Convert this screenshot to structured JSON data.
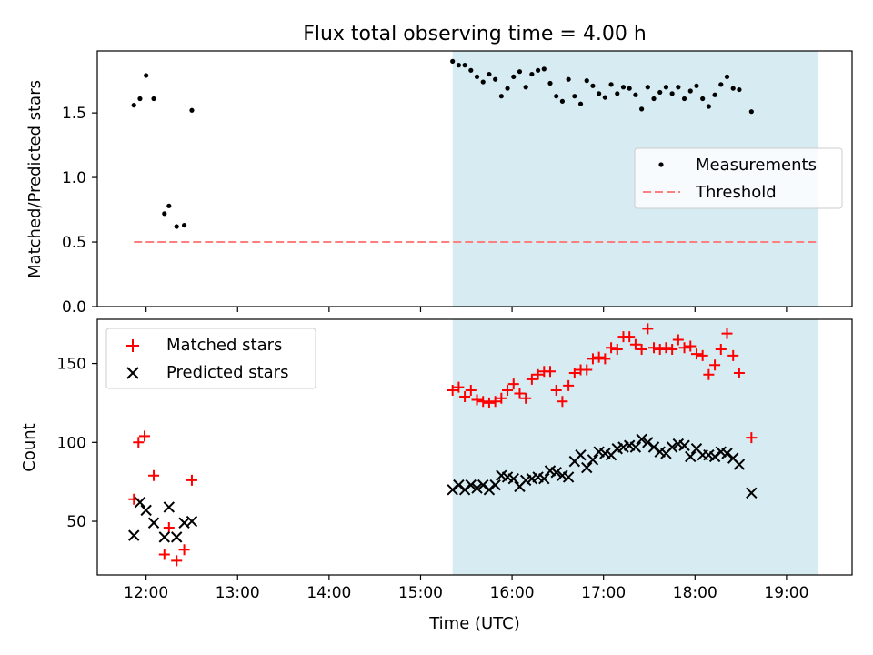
{
  "figure": {
    "title": "Flux total observing time = 4.00 h",
    "xlabel": "Time (UTC)"
  },
  "chart_data": [
    {
      "type": "scatter",
      "name": "ratio-panel",
      "ylabel": "Matched/Predicted stars",
      "xlim": [
        "11:28",
        "19:43"
      ],
      "ylim": [
        0,
        1.98
      ],
      "yticks": [
        "0.0",
        "0.5",
        "1.0",
        "1.5"
      ],
      "ytick_values": [
        0,
        0.5,
        1.0,
        1.5
      ],
      "xticks": [
        "12:00",
        "13:00",
        "14:00",
        "15:00",
        "16:00",
        "17:00",
        "18:00",
        "19:00"
      ],
      "grid": false,
      "legend_placement": "center-right",
      "shaded_region": {
        "x": [
          "15:21",
          "19:21"
        ],
        "color": "#add8e6"
      },
      "threshold": {
        "name": "Threshold",
        "y": 0.5,
        "x": [
          "11:52",
          "19:21"
        ],
        "color": "#ff7f7f",
        "style": "dashed"
      },
      "series": [
        {
          "name": "Measurements",
          "color": "#000000",
          "marker": "dot",
          "points": [
            [
              "11:52",
              1.56
            ],
            [
              "11:56",
              1.61
            ],
            [
              "12:00",
              1.79
            ],
            [
              "12:05",
              1.61
            ],
            [
              "12:12",
              0.72
            ],
            [
              "12:15",
              0.78
            ],
            [
              "12:20",
              0.62
            ],
            [
              "12:25",
              0.63
            ],
            [
              "12:30",
              1.52
            ],
            [
              "15:21",
              1.9
            ],
            [
              "15:25",
              1.87
            ],
            [
              "15:29",
              1.87
            ],
            [
              "15:33",
              1.83
            ],
            [
              "15:37",
              1.78
            ],
            [
              "15:41",
              1.74
            ],
            [
              "15:45",
              1.8
            ],
            [
              "15:49",
              1.76
            ],
            [
              "15:53",
              1.63
            ],
            [
              "15:57",
              1.69
            ],
            [
              "16:01",
              1.78
            ],
            [
              "16:05",
              1.82
            ],
            [
              "16:09",
              1.7
            ],
            [
              "16:13",
              1.8
            ],
            [
              "16:17",
              1.83
            ],
            [
              "16:21",
              1.84
            ],
            [
              "16:25",
              1.73
            ],
            [
              "16:29",
              1.63
            ],
            [
              "16:33",
              1.59
            ],
            [
              "16:37",
              1.76
            ],
            [
              "16:41",
              1.63
            ],
            [
              "16:45",
              1.57
            ],
            [
              "16:49",
              1.75
            ],
            [
              "16:53",
              1.71
            ],
            [
              "16:57",
              1.65
            ],
            [
              "17:01",
              1.62
            ],
            [
              "17:05",
              1.72
            ],
            [
              "17:09",
              1.65
            ],
            [
              "17:13",
              1.7
            ],
            [
              "17:17",
              1.69
            ],
            [
              "17:21",
              1.64
            ],
            [
              "17:25",
              1.53
            ],
            [
              "17:29",
              1.7
            ],
            [
              "17:33",
              1.61
            ],
            [
              "17:37",
              1.66
            ],
            [
              "17:41",
              1.7
            ],
            [
              "17:45",
              1.65
            ],
            [
              "17:49",
              1.7
            ],
            [
              "17:53",
              1.61
            ],
            [
              "17:57",
              1.67
            ],
            [
              "18:01",
              1.71
            ],
            [
              "18:05",
              1.61
            ],
            [
              "18:09",
              1.55
            ],
            [
              "18:13",
              1.64
            ],
            [
              "18:17",
              1.72
            ],
            [
              "18:21",
              1.78
            ],
            [
              "18:25",
              1.69
            ],
            [
              "18:29",
              1.68
            ],
            [
              "18:37",
              1.51
            ]
          ]
        }
      ]
    },
    {
      "type": "scatter",
      "name": "count-panel",
      "ylabel": "Count",
      "xlim": [
        "11:28",
        "19:43"
      ],
      "ylim": [
        16,
        178
      ],
      "yticks": [
        "50",
        "100",
        "150"
      ],
      "ytick_values": [
        50,
        100,
        150
      ],
      "xticks": [
        "12:00",
        "13:00",
        "14:00",
        "15:00",
        "16:00",
        "17:00",
        "18:00",
        "19:00"
      ],
      "grid": false,
      "legend_placement": "top-left",
      "shaded_region": {
        "x": [
          "15:21",
          "19:21"
        ],
        "color": "#add8e6"
      },
      "series": [
        {
          "name": "Matched stars",
          "color": "#ff0000",
          "marker": "plus",
          "points": [
            [
              "11:52",
              64
            ],
            [
              "11:55",
              100
            ],
            [
              "11:59",
              104
            ],
            [
              "12:05",
              79
            ],
            [
              "12:12",
              29
            ],
            [
              "12:15",
              46
            ],
            [
              "12:20",
              25
            ],
            [
              "12:25",
              32
            ],
            [
              "12:30",
              76
            ],
            [
              "15:21",
              133
            ],
            [
              "15:25",
              135
            ],
            [
              "15:29",
              129
            ],
            [
              "15:33",
              133
            ],
            [
              "15:37",
              127
            ],
            [
              "15:41",
              126
            ],
            [
              "15:45",
              125
            ],
            [
              "15:49",
              126
            ],
            [
              "15:53",
              128
            ],
            [
              "15:57",
              133
            ],
            [
              "16:01",
              137
            ],
            [
              "16:05",
              131
            ],
            [
              "16:09",
              128
            ],
            [
              "16:13",
              140
            ],
            [
              "16:17",
              143
            ],
            [
              "16:21",
              145
            ],
            [
              "16:25",
              145
            ],
            [
              "16:29",
              133
            ],
            [
              "16:33",
              126
            ],
            [
              "16:37",
              136
            ],
            [
              "16:41",
              144
            ],
            [
              "16:45",
              146
            ],
            [
              "16:49",
              146
            ],
            [
              "16:53",
              153
            ],
            [
              "16:57",
              154
            ],
            [
              "17:01",
              153
            ],
            [
              "17:05",
              160
            ],
            [
              "17:09",
              159
            ],
            [
              "17:13",
              167
            ],
            [
              "17:17",
              167
            ],
            [
              "17:21",
              162
            ],
            [
              "17:25",
              159
            ],
            [
              "17:29",
              172
            ],
            [
              "17:33",
              160
            ],
            [
              "17:37",
              159
            ],
            [
              "17:41",
              160
            ],
            [
              "17:45",
              159
            ],
            [
              "17:49",
              165
            ],
            [
              "17:53",
              160
            ],
            [
              "17:57",
              161
            ],
            [
              "18:01",
              156
            ],
            [
              "18:05",
              155
            ],
            [
              "18:09",
              143
            ],
            [
              "18:13",
              149
            ],
            [
              "18:17",
              159
            ],
            [
              "18:21",
              169
            ],
            [
              "18:25",
              155
            ],
            [
              "18:29",
              144
            ],
            [
              "18:37",
              103
            ]
          ]
        },
        {
          "name": "Predicted stars",
          "color": "#000000",
          "marker": "x",
          "points": [
            [
              "11:52",
              41
            ],
            [
              "11:56",
              62
            ],
            [
              "12:00",
              57
            ],
            [
              "12:05",
              49
            ],
            [
              "12:12",
              40
            ],
            [
              "12:15",
              59
            ],
            [
              "12:20",
              40
            ],
            [
              "12:25",
              49
            ],
            [
              "12:30",
              50
            ],
            [
              "15:21",
              70
            ],
            [
              "15:25",
              73
            ],
            [
              "15:29",
              70
            ],
            [
              "15:33",
              73
            ],
            [
              "15:37",
              71
            ],
            [
              "15:41",
              73
            ],
            [
              "15:45",
              70
            ],
            [
              "15:49",
              73
            ],
            [
              "15:53",
              79
            ],
            [
              "15:57",
              78
            ],
            [
              "16:01",
              77
            ],
            [
              "16:05",
              72
            ],
            [
              "16:09",
              76
            ],
            [
              "16:13",
              77
            ],
            [
              "16:17",
              78
            ],
            [
              "16:21",
              77
            ],
            [
              "16:25",
              82
            ],
            [
              "16:29",
              81
            ],
            [
              "16:33",
              79
            ],
            [
              "16:37",
              78
            ],
            [
              "16:41",
              88
            ],
            [
              "16:45",
              92
            ],
            [
              "16:49",
              84
            ],
            [
              "16:53",
              89
            ],
            [
              "16:57",
              94
            ],
            [
              "17:01",
              93
            ],
            [
              "17:05",
              92
            ],
            [
              "17:09",
              96
            ],
            [
              "17:13",
              97
            ],
            [
              "17:17",
              98
            ],
            [
              "17:21",
              97
            ],
            [
              "17:25",
              102
            ],
            [
              "17:29",
              100
            ],
            [
              "17:33",
              97
            ],
            [
              "17:37",
              94
            ],
            [
              "17:41",
              93
            ],
            [
              "17:45",
              97
            ],
            [
              "17:49",
              99
            ],
            [
              "17:53",
              98
            ],
            [
              "17:57",
              91
            ],
            [
              "18:01",
              96
            ],
            [
              "18:05",
              92
            ],
            [
              "18:09",
              92
            ],
            [
              "18:13",
              91
            ],
            [
              "18:17",
              94
            ],
            [
              "18:21",
              93
            ],
            [
              "18:25",
              90
            ],
            [
              "18:29",
              86
            ],
            [
              "18:37",
              68
            ]
          ]
        }
      ]
    }
  ]
}
